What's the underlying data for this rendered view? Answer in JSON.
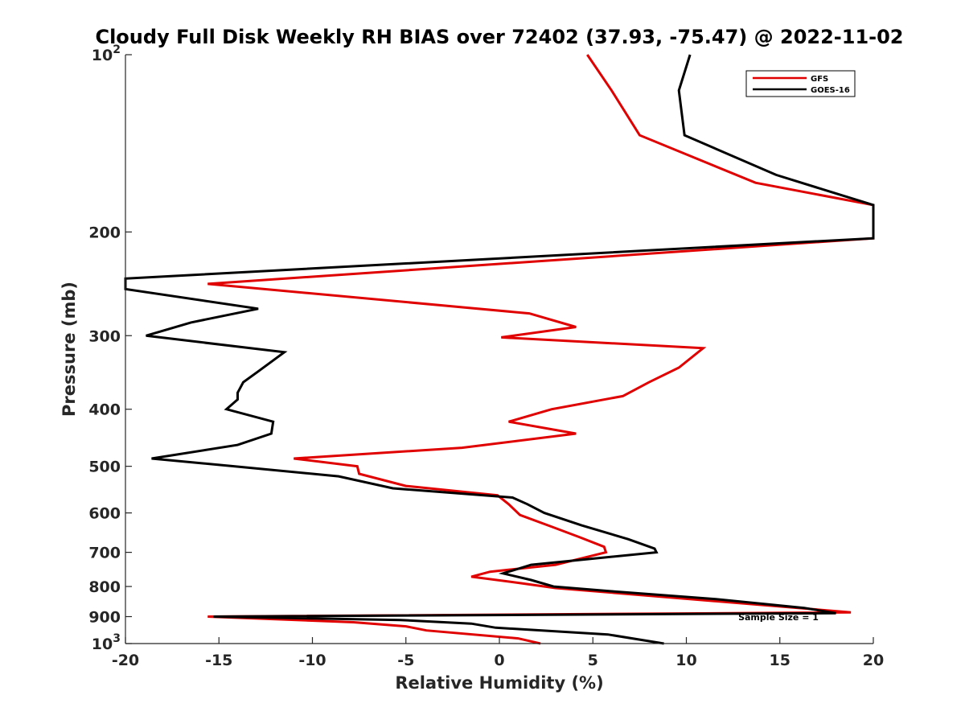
{
  "chart_data": {
    "type": "line",
    "title": "Cloudy Full Disk Weekly RH BIAS over 72402 (37.93, -75.47) @ 2022-11-02",
    "xlabel": "Relative Humidity (%)",
    "ylabel": "Pressure (mb)",
    "xlim": [
      -20,
      20
    ],
    "ylim": [
      100,
      1000
    ],
    "yscale": "log",
    "y_reversed": true,
    "x_ticks": [
      "-20",
      "-15",
      "-10",
      "-5",
      "0",
      "5",
      "10",
      "15",
      "20"
    ],
    "y_ticks": [
      {
        "value": 100,
        "base": "10",
        "exp": "2"
      },
      {
        "value": 200,
        "label": "200"
      },
      {
        "value": 300,
        "label": "300"
      },
      {
        "value": 400,
        "label": "400"
      },
      {
        "value": 500,
        "label": "500"
      },
      {
        "value": 600,
        "label": "600"
      },
      {
        "value": 700,
        "label": "700"
      },
      {
        "value": 800,
        "label": "800"
      },
      {
        "value": 900,
        "label": "900"
      },
      {
        "value": 1000,
        "base": "10",
        "exp": "3"
      }
    ],
    "grid": false,
    "legend_position": "top-right",
    "annotation": "Sample Size = 1",
    "series": [
      {
        "name": "GFS",
        "color": "#e00000",
        "points": [
          [
            4.7,
            100
          ],
          [
            6.0,
            115
          ],
          [
            7.5,
            137
          ],
          [
            13.7,
            165
          ],
          [
            20.0,
            180
          ],
          [
            20.0,
            205
          ],
          [
            -15.6,
            245
          ],
          [
            1.6,
            275
          ],
          [
            4.1,
            290
          ],
          [
            0.1,
            302
          ],
          [
            10.9,
            315
          ],
          [
            9.6,
            340
          ],
          [
            8.0,
            360
          ],
          [
            6.6,
            380
          ],
          [
            2.8,
            400
          ],
          [
            0.5,
            420
          ],
          [
            4.1,
            440
          ],
          [
            -2.0,
            465
          ],
          [
            -11.0,
            485
          ],
          [
            -7.6,
            500
          ],
          [
            -7.5,
            515
          ],
          [
            -5.0,
            540
          ],
          [
            -0.1,
            560
          ],
          [
            0.5,
            580
          ],
          [
            1.1,
            605
          ],
          [
            2.9,
            635
          ],
          [
            4.3,
            660
          ],
          [
            5.6,
            685
          ],
          [
            5.7,
            700
          ],
          [
            3.0,
            735
          ],
          [
            -0.5,
            755
          ],
          [
            -1.5,
            770
          ],
          [
            1.2,
            790
          ],
          [
            3.0,
            805
          ],
          [
            15.0,
            865
          ],
          [
            18.8,
            885
          ],
          [
            -15.6,
            900
          ],
          [
            -7.8,
            920
          ],
          [
            -5.0,
            935
          ],
          [
            -3.9,
            950
          ],
          [
            1.0,
            980
          ],
          [
            2.2,
            1000
          ]
        ]
      },
      {
        "name": "GOES-16",
        "color": "#000000",
        "points": [
          [
            10.2,
            100
          ],
          [
            9.6,
            115
          ],
          [
            9.9,
            137
          ],
          [
            14.8,
            160
          ],
          [
            20.0,
            180
          ],
          [
            20.0,
            205
          ],
          [
            -20.0,
            240
          ],
          [
            -20.0,
            250
          ],
          [
            -12.9,
            270
          ],
          [
            -16.5,
            285
          ],
          [
            -18.9,
            300
          ],
          [
            -11.5,
            320
          ],
          [
            -12.9,
            345
          ],
          [
            -13.7,
            360
          ],
          [
            -14.0,
            375
          ],
          [
            -14.0,
            385
          ],
          [
            -14.6,
            400
          ],
          [
            -12.1,
            420
          ],
          [
            -12.2,
            440
          ],
          [
            -14.0,
            460
          ],
          [
            -18.6,
            485
          ],
          [
            -14.2,
            500
          ],
          [
            -8.6,
            520
          ],
          [
            -5.7,
            545
          ],
          [
            0.7,
            565
          ],
          [
            1.5,
            580
          ],
          [
            2.4,
            600
          ],
          [
            4.4,
            630
          ],
          [
            6.9,
            665
          ],
          [
            8.3,
            690
          ],
          [
            8.4,
            700
          ],
          [
            1.7,
            735
          ],
          [
            0.2,
            760
          ],
          [
            1.7,
            780
          ],
          [
            2.9,
            800
          ],
          [
            6.0,
            815
          ],
          [
            11.5,
            840
          ],
          [
            16.3,
            870
          ],
          [
            18.0,
            888
          ],
          [
            -15.3,
            900
          ],
          [
            -5.3,
            912
          ],
          [
            -1.5,
            925
          ],
          [
            -0.2,
            940
          ],
          [
            5.8,
            965
          ],
          [
            8.8,
            1000
          ]
        ]
      }
    ]
  }
}
